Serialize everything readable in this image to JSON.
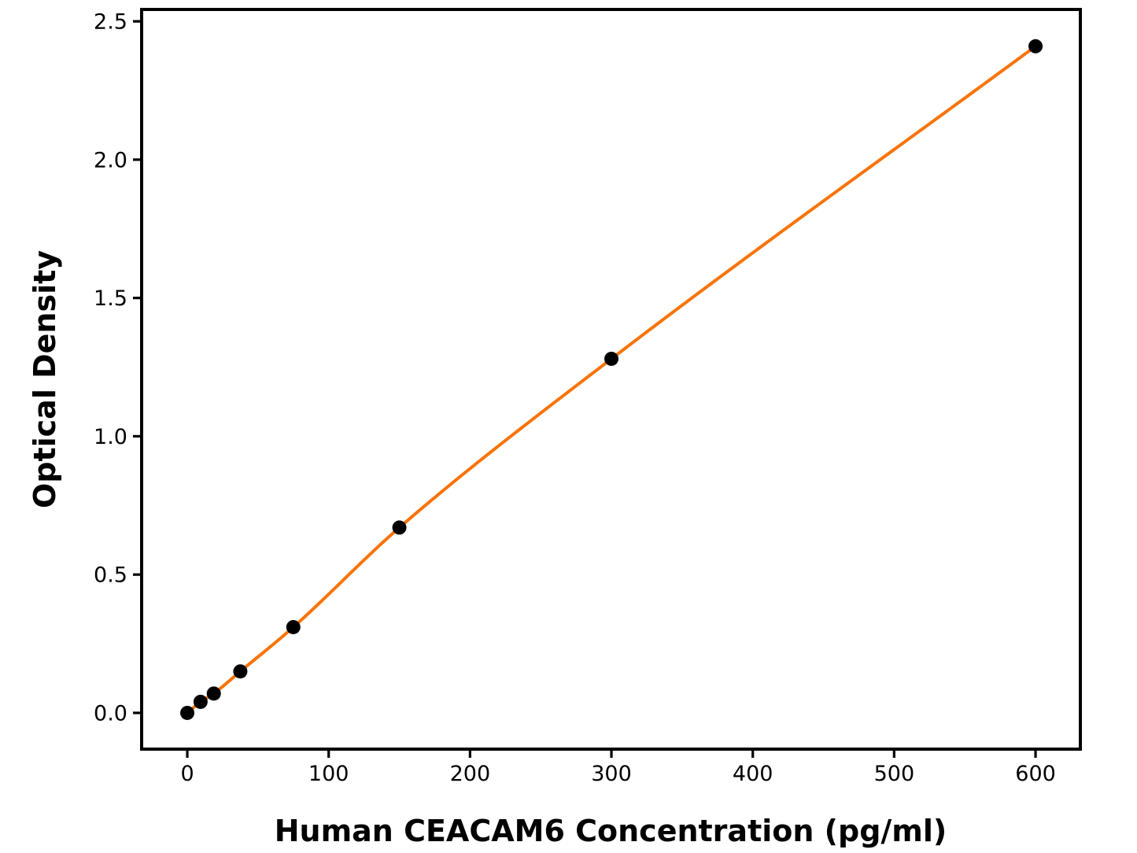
{
  "chart_data": {
    "type": "scatter",
    "title": "",
    "xlabel": "Human CEACAM6 Concentration (pg/ml)",
    "ylabel": "Optical Density",
    "x": [
      0,
      9.375,
      18.75,
      37.5,
      75,
      150,
      300,
      600
    ],
    "y": [
      0.0,
      0.04,
      0.07,
      0.15,
      0.31,
      0.67,
      1.28,
      2.41
    ],
    "fit_line": true,
    "x_ticks": [
      0,
      100,
      200,
      300,
      400,
      500,
      600
    ],
    "x_tick_labels": [
      "0",
      "100",
      "200",
      "300",
      "400",
      "500",
      "600"
    ],
    "y_ticks": [
      0.0,
      0.5,
      1.0,
      1.5,
      2.0,
      2.5
    ],
    "y_tick_labels": [
      "0.0",
      "0.5",
      "1.0",
      "1.5",
      "2.0",
      "2.5"
    ],
    "xlim": [
      -32.3,
      631.7
    ],
    "ylim": [
      -0.131,
      2.543
    ],
    "grid": false,
    "legend": null,
    "colors": {
      "line": "#F97306",
      "marker": "#000000",
      "axis": "#000000",
      "background": "#FFFFFF",
      "text": "#000000"
    }
  }
}
